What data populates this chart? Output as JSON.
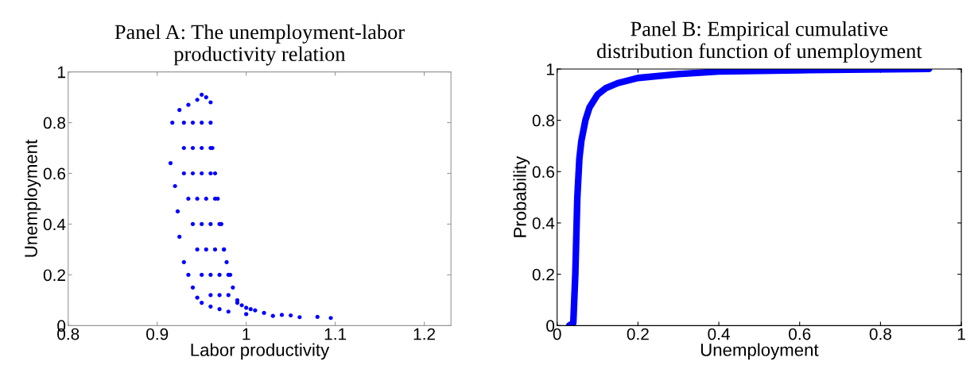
{
  "chart_data": [
    {
      "type": "scatter",
      "title": "Panel A: The unemployment-labor\nproductivity relation",
      "xlabel": "Labor productivity",
      "ylabel": "Unemployment",
      "xlim": [
        0.8,
        1.23
      ],
      "ylim": [
        0,
        1
      ],
      "xticks": [
        0.8,
        0.9,
        1,
        1.1,
        1.2
      ],
      "yticks": [
        0,
        0.2,
        0.4,
        0.6,
        0.8,
        1
      ],
      "grid": false,
      "marker": "circle",
      "series": [
        {
          "color": "#0000ff",
          "x": [
            0.917,
            0.915,
            0.92,
            0.923,
            0.925,
            0.93,
            0.935,
            0.94,
            0.945,
            0.95,
            0.96,
            0.97,
            0.98,
            1.0,
            1.03,
            1.06,
            1.095,
            0.925,
            0.935,
            0.945,
            0.95,
            0.955,
            0.96,
            0.96,
            0.962,
            0.965,
            0.968,
            0.972,
            0.975,
            0.978,
            0.982,
            0.985,
            0.99,
            0.995,
            1.005,
            1.02,
            1.05,
            1.08,
            0.93,
            0.94,
            0.95,
            0.93,
            0.94,
            0.95,
            0.96,
            0.93,
            0.94,
            0.95,
            0.96,
            0.935,
            0.945,
            0.955,
            0.965,
            0.94,
            0.95,
            0.96,
            0.97,
            0.945,
            0.955,
            0.965,
            0.975,
            0.95,
            0.96,
            0.97,
            0.98,
            0.96,
            0.97,
            0.98,
            0.99,
            1.0,
            1.01,
            1.04
          ],
          "values": [
            0.8,
            0.64,
            0.55,
            0.45,
            0.35,
            0.25,
            0.2,
            0.15,
            0.11,
            0.09,
            0.075,
            0.065,
            0.055,
            0.045,
            0.038,
            0.033,
            0.03,
            0.85,
            0.87,
            0.89,
            0.91,
            0.9,
            0.88,
            0.8,
            0.7,
            0.6,
            0.5,
            0.4,
            0.3,
            0.25,
            0.2,
            0.15,
            0.1,
            0.08,
            0.065,
            0.05,
            0.04,
            0.034,
            0.8,
            0.8,
            0.8,
            0.7,
            0.7,
            0.7,
            0.7,
            0.6,
            0.6,
            0.6,
            0.6,
            0.5,
            0.5,
            0.5,
            0.5,
            0.4,
            0.4,
            0.4,
            0.4,
            0.3,
            0.3,
            0.3,
            0.3,
            0.2,
            0.2,
            0.2,
            0.2,
            0.12,
            0.12,
            0.12,
            0.09,
            0.07,
            0.06,
            0.042
          ]
        }
      ]
    },
    {
      "type": "line",
      "title": "Panel B: Empirical cumulative\ndistribution function of unemployment",
      "xlabel": "Unemployment",
      "ylabel": "Probability",
      "xlim": [
        0,
        1
      ],
      "ylim": [
        0,
        1
      ],
      "xticks": [
        0,
        0.2,
        0.4,
        0.6,
        0.8,
        1
      ],
      "yticks": [
        0,
        0.2,
        0.4,
        0.6,
        0.8,
        1
      ],
      "grid": false,
      "line_style": "solid",
      "series": [
        {
          "color": "#0000ff",
          "x": [
            0.03,
            0.04,
            0.045,
            0.05,
            0.055,
            0.06,
            0.07,
            0.08,
            0.1,
            0.12,
            0.15,
            0.2,
            0.3,
            0.4,
            0.6,
            0.92
          ],
          "values": [
            0,
            0.01,
            0.2,
            0.5,
            0.65,
            0.72,
            0.8,
            0.85,
            0.9,
            0.925,
            0.945,
            0.965,
            0.98,
            0.99,
            0.995,
            1.0
          ]
        }
      ]
    }
  ]
}
